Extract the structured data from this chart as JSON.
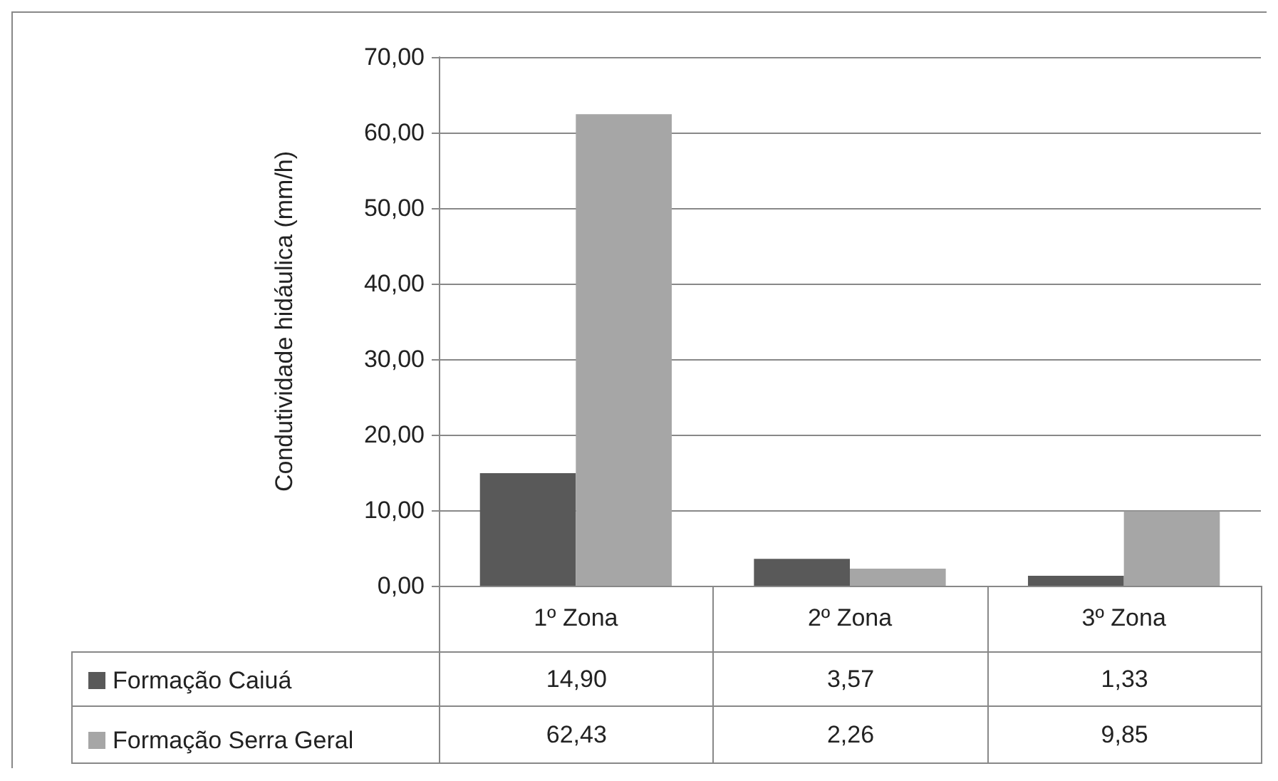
{
  "chart_data": {
    "type": "bar",
    "ylabel": "Condutividade hidáulica (mm/h)",
    "categories": [
      "1º Zona",
      "2º Zona",
      "3º Zona"
    ],
    "series": [
      {
        "name": "Formação Caiuá",
        "color": "#595959",
        "values": [
          14.9,
          3.57,
          1.33
        ],
        "value_labels": [
          "14,90",
          "3,57",
          "1,33"
        ]
      },
      {
        "name": "Formação Serra Geral",
        "color": "#a6a6a6",
        "values": [
          62.43,
          2.26,
          9.85
        ],
        "value_labels": [
          "62,43",
          "2,26",
          "9,85"
        ]
      }
    ],
    "ylim": [
      0,
      70
    ],
    "yticks": [
      {
        "value": 0,
        "label": "0,00"
      },
      {
        "value": 10,
        "label": "10,00"
      },
      {
        "value": 20,
        "label": "20,00"
      },
      {
        "value": 30,
        "label": "30,00"
      },
      {
        "value": 40,
        "label": "40,00"
      },
      {
        "value": 50,
        "label": "50,00"
      },
      {
        "value": 60,
        "label": "60,00"
      },
      {
        "value": 70,
        "label": "70,00"
      }
    ],
    "grid": "y",
    "legend": "bottom left"
  }
}
